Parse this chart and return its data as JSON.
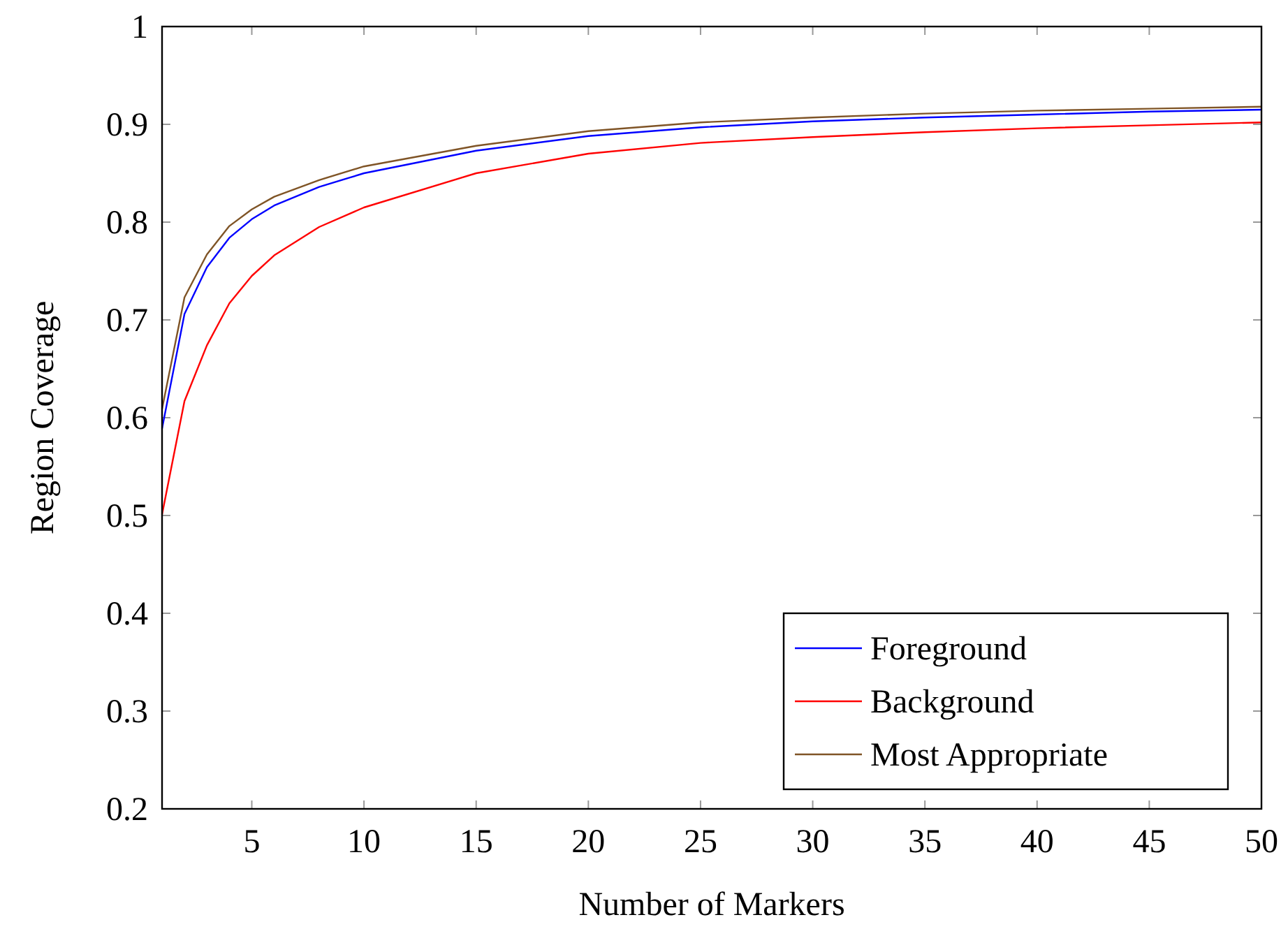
{
  "chart_data": {
    "type": "line",
    "xlabel": "Number of Markers",
    "ylabel": "Region Coverage",
    "x": [
      1,
      2,
      3,
      4,
      5,
      6,
      8,
      10,
      15,
      20,
      25,
      30,
      35,
      40,
      45,
      50
    ],
    "xlim": [
      1,
      50
    ],
    "ylim": [
      0.2,
      1
    ],
    "xticks": [
      5,
      10,
      15,
      20,
      25,
      30,
      35,
      40,
      45,
      50
    ],
    "yticks": [
      0.2,
      0.3,
      0.4,
      0.5,
      0.6,
      0.7,
      0.8,
      0.9,
      1
    ],
    "legend": "bottom right",
    "series": [
      {
        "name": "Foreground",
        "color": "#0000ff",
        "values": [
          0.589,
          0.706,
          0.754,
          0.784,
          0.803,
          0.817,
          0.836,
          0.85,
          0.873,
          0.888,
          0.897,
          0.903,
          0.907,
          0.91,
          0.913,
          0.915
        ]
      },
      {
        "name": "Background",
        "color": "#ff0000",
        "values": [
          0.501,
          0.617,
          0.674,
          0.717,
          0.745,
          0.766,
          0.795,
          0.815,
          0.85,
          0.87,
          0.881,
          0.887,
          0.892,
          0.896,
          0.899,
          0.902
        ]
      },
      {
        "name": "Most Appropriate",
        "color": "#7f5426",
        "values": [
          0.609,
          0.723,
          0.767,
          0.796,
          0.813,
          0.826,
          0.843,
          0.857,
          0.878,
          0.893,
          0.902,
          0.907,
          0.911,
          0.914,
          0.916,
          0.918
        ]
      }
    ]
  }
}
